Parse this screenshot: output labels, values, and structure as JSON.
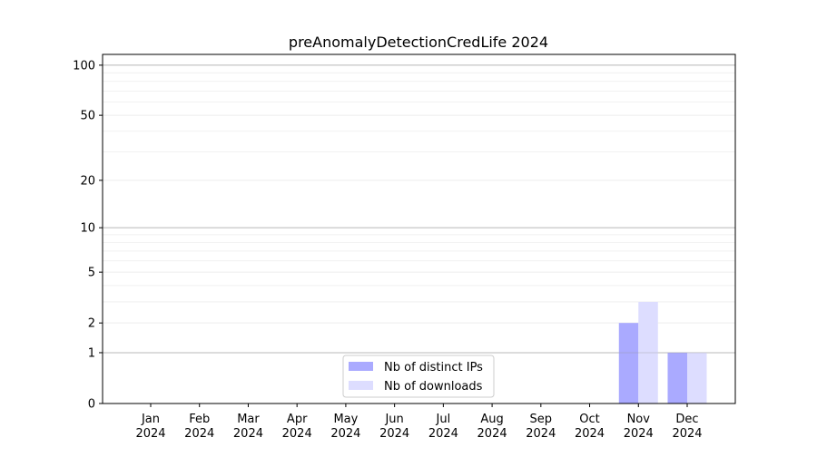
{
  "chart_data": {
    "type": "bar",
    "title": "preAnomalyDetectionCredLife 2024",
    "xlabel": "",
    "ylabel": "",
    "yscale": "log(1+y)",
    "ylim": [
      0,
      116
    ],
    "yticks": [
      0,
      1,
      2,
      5,
      10,
      20,
      50,
      100
    ],
    "grid": true,
    "legend_position": "bottom-center",
    "categories": [
      "Jan\n2024",
      "Feb\n2024",
      "Mar\n2024",
      "Apr\n2024",
      "May\n2024",
      "Jun\n2024",
      "Jul\n2024",
      "Aug\n2024",
      "Sep\n2024",
      "Oct\n2024",
      "Nov\n2024",
      "Dec\n2024"
    ],
    "series": [
      {
        "name": "Nb of distinct IPs",
        "color": "#aaaaff",
        "values": [
          0,
          0,
          0,
          0,
          0,
          0,
          0,
          0,
          0,
          0,
          2,
          1
        ]
      },
      {
        "name": "Nb of downloads",
        "color": "#ddddff",
        "values": [
          0,
          0,
          0,
          0,
          0,
          0,
          0,
          0,
          0,
          0,
          3,
          1
        ]
      }
    ]
  }
}
